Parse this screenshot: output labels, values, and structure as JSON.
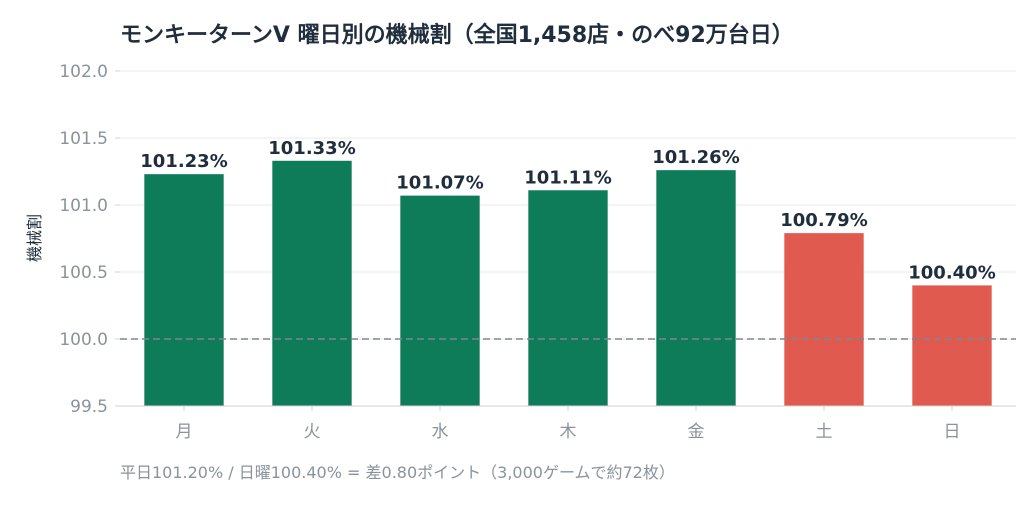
{
  "chart_data": {
    "type": "bar",
    "title": "モンキーターンV 曜日別の機械割（全国1,458店・のべ92万台日）",
    "ylabel": "機械割",
    "xlabel": "",
    "categories": [
      "月",
      "火",
      "水",
      "木",
      "金",
      "土",
      "日"
    ],
    "values": [
      101.23,
      101.33,
      101.07,
      101.11,
      101.26,
      100.79,
      100.4
    ],
    "data_labels": [
      "101.23%",
      "101.33%",
      "101.07%",
      "101.11%",
      "101.26%",
      "100.79%",
      "100.40%"
    ],
    "ylim": [
      99.5,
      102.0
    ],
    "yticks": [
      "99.5",
      "100.0",
      "100.5",
      "101.0",
      "101.5",
      "102.0"
    ],
    "reference_line": 100.0,
    "grid": true,
    "colors": {
      "weekday": "#0e7c58",
      "weekend": "#e05a4f",
      "reference": "#7d8790"
    },
    "bar_groups": [
      "weekday",
      "weekday",
      "weekday",
      "weekday",
      "weekday",
      "weekend",
      "weekend"
    ],
    "footnote": "平日101.20% / 日曜100.40% = 差0.80ポイント（3,000ゲームで約72枚）"
  }
}
